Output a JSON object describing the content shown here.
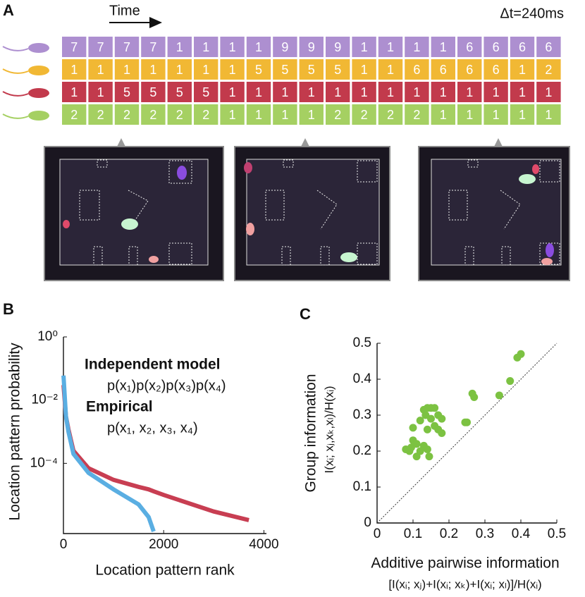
{
  "panel_a": {
    "label": "A",
    "time_label": "Time",
    "dt_label": "Δt=240ms",
    "rows": [
      {
        "color": "#ad8fd0",
        "values": [
          7,
          7,
          7,
          7,
          1,
          1,
          1,
          1,
          9,
          9,
          9,
          1,
          1,
          1,
          1,
          6,
          6,
          6,
          6
        ]
      },
      {
        "color": "#f1b834",
        "values": [
          1,
          1,
          1,
          1,
          1,
          1,
          1,
          5,
          5,
          5,
          5,
          1,
          1,
          6,
          6,
          6,
          6,
          1,
          2
        ]
      },
      {
        "color": "#c23a4c",
        "values": [
          1,
          1,
          5,
          5,
          5,
          5,
          1,
          1,
          1,
          1,
          1,
          1,
          1,
          1,
          1,
          1,
          1,
          1,
          1
        ]
      },
      {
        "color": "#a5d062",
        "values": [
          2,
          2,
          2,
          2,
          2,
          2,
          1,
          1,
          1,
          1,
          2,
          2,
          2,
          2,
          1,
          1,
          1,
          1,
          1
        ]
      }
    ]
  },
  "chart_data": [
    {
      "type": "line",
      "label": "B",
      "xlabel": "Location pattern rank",
      "ylabel": "Location pattern probability",
      "log_y": true,
      "xlim": [
        0,
        4050
      ],
      "ylim": [
        6e-07,
        1
      ],
      "xticks": [
        0,
        2000,
        4000
      ],
      "yticks": [
        {
          "value": 1,
          "label": "10⁰"
        },
        {
          "value": 0.01,
          "label": "10⁻²"
        },
        {
          "value": 0.0001,
          "label": "10⁻⁴"
        }
      ],
      "x": [
        1,
        50,
        100,
        200,
        500,
        1000,
        1500,
        1700,
        1800,
        2000,
        3000,
        3700
      ],
      "series": [
        {
          "name": "Independent model",
          "formula": "p(x₁)p(x₂)p(x₃)p(x₄)",
          "color": "#c83e52",
          "values": [
            0.03,
            0.003,
            0.0012,
            0.00025,
            7e-05,
            3e-05,
            1.8e-05,
            1.5e-05,
            1.3e-05,
            1e-05,
            3e-06,
            1.6e-06
          ]
        },
        {
          "name": "Empirical",
          "formula": "p(x₁, x₂, x₃, x₄)",
          "color": "#5aaee2",
          "values": [
            0.06,
            0.003,
            0.001,
            0.0002,
            5e-05,
            1.5e-05,
            5e-06,
            2e-06,
            7e-07,
            null,
            null,
            null
          ]
        }
      ]
    },
    {
      "type": "scatter",
      "label": "C",
      "xlabel": "Additive pairwise information",
      "xlabel2": "[I(xᵢ; xⱼ)+I(xᵢ; xₖ)+I(xᵢ; xₗ)]/H(xᵢ)",
      "ylabel": "Group information",
      "ylabel2": "I(xᵢ; xⱼ,xₖ,xₗ)/H(xᵢ)",
      "diagonal": true,
      "xlim": [
        0,
        0.5
      ],
      "ylim": [
        0,
        0.5
      ],
      "xticks": [
        0,
        0.1,
        0.2,
        0.3,
        0.4,
        0.5
      ],
      "yticks": [
        0,
        0.1,
        0.2,
        0.3,
        0.4,
        0.5
      ],
      "series": [
        {
          "color": "#7cc242",
          "x": [
            0.4,
            0.39,
            0.37,
            0.34,
            0.265,
            0.27,
            0.245,
            0.25,
            0.1,
            0.13,
            0.14,
            0.15,
            0.16,
            0.135,
            0.15,
            0.17,
            0.18,
            0.12,
            0.16,
            0.14,
            0.17,
            0.18,
            0.095,
            0.08,
            0.1,
            0.11,
            0.12,
            0.13,
            0.14,
            0.11,
            0.145,
            0.09
          ],
          "values": [
            0.47,
            0.46,
            0.395,
            0.355,
            0.36,
            0.35,
            0.28,
            0.28,
            0.265,
            0.315,
            0.32,
            0.32,
            0.32,
            0.3,
            0.29,
            0.3,
            0.29,
            0.285,
            0.27,
            0.26,
            0.26,
            0.25,
            0.21,
            0.205,
            0.23,
            0.22,
            0.2,
            0.215,
            0.205,
            0.185,
            0.185,
            0.2
          ]
        }
      ]
    }
  ]
}
